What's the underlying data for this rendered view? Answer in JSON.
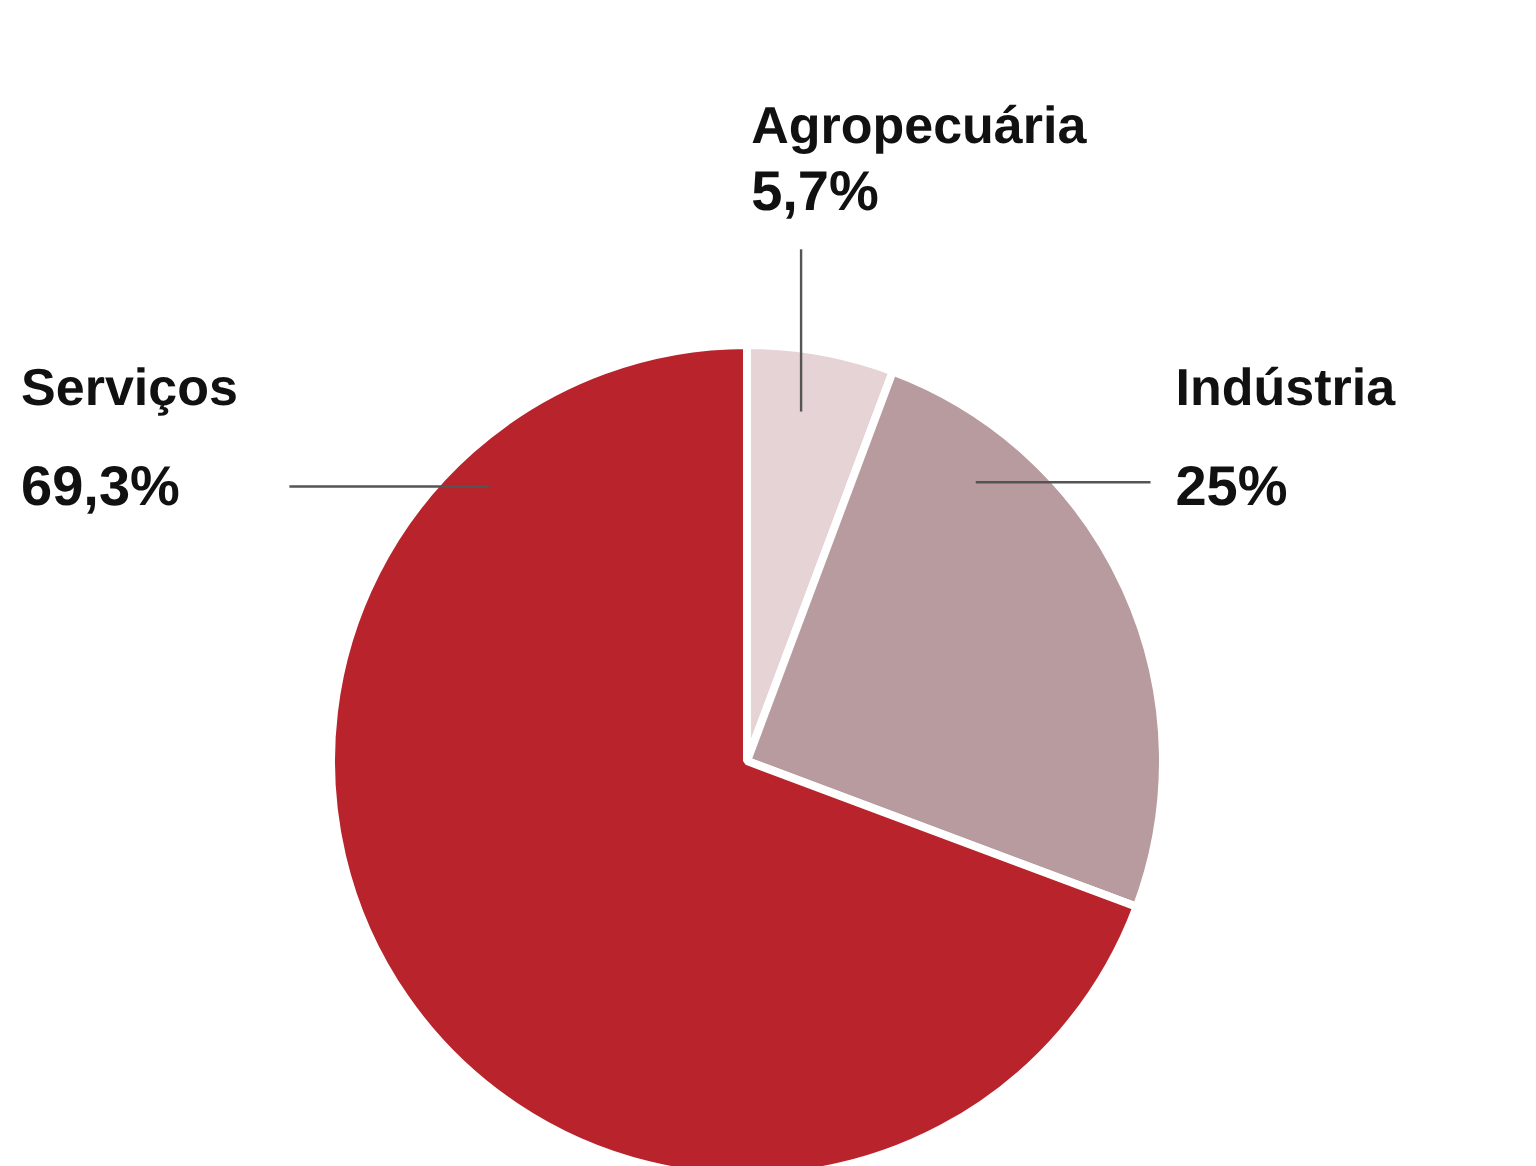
{
  "chart_data": {
    "type": "pie",
    "categories": [
      "Agropecuária",
      "Indústria",
      "Serviços"
    ],
    "values": [
      5.7,
      25,
      69.3
    ],
    "colors": [
      "#e6d3d5",
      "#b89b9e",
      "#b8232c"
    ],
    "value_labels": [
      "5,7%",
      "25%",
      "69,3%"
    ]
  }
}
